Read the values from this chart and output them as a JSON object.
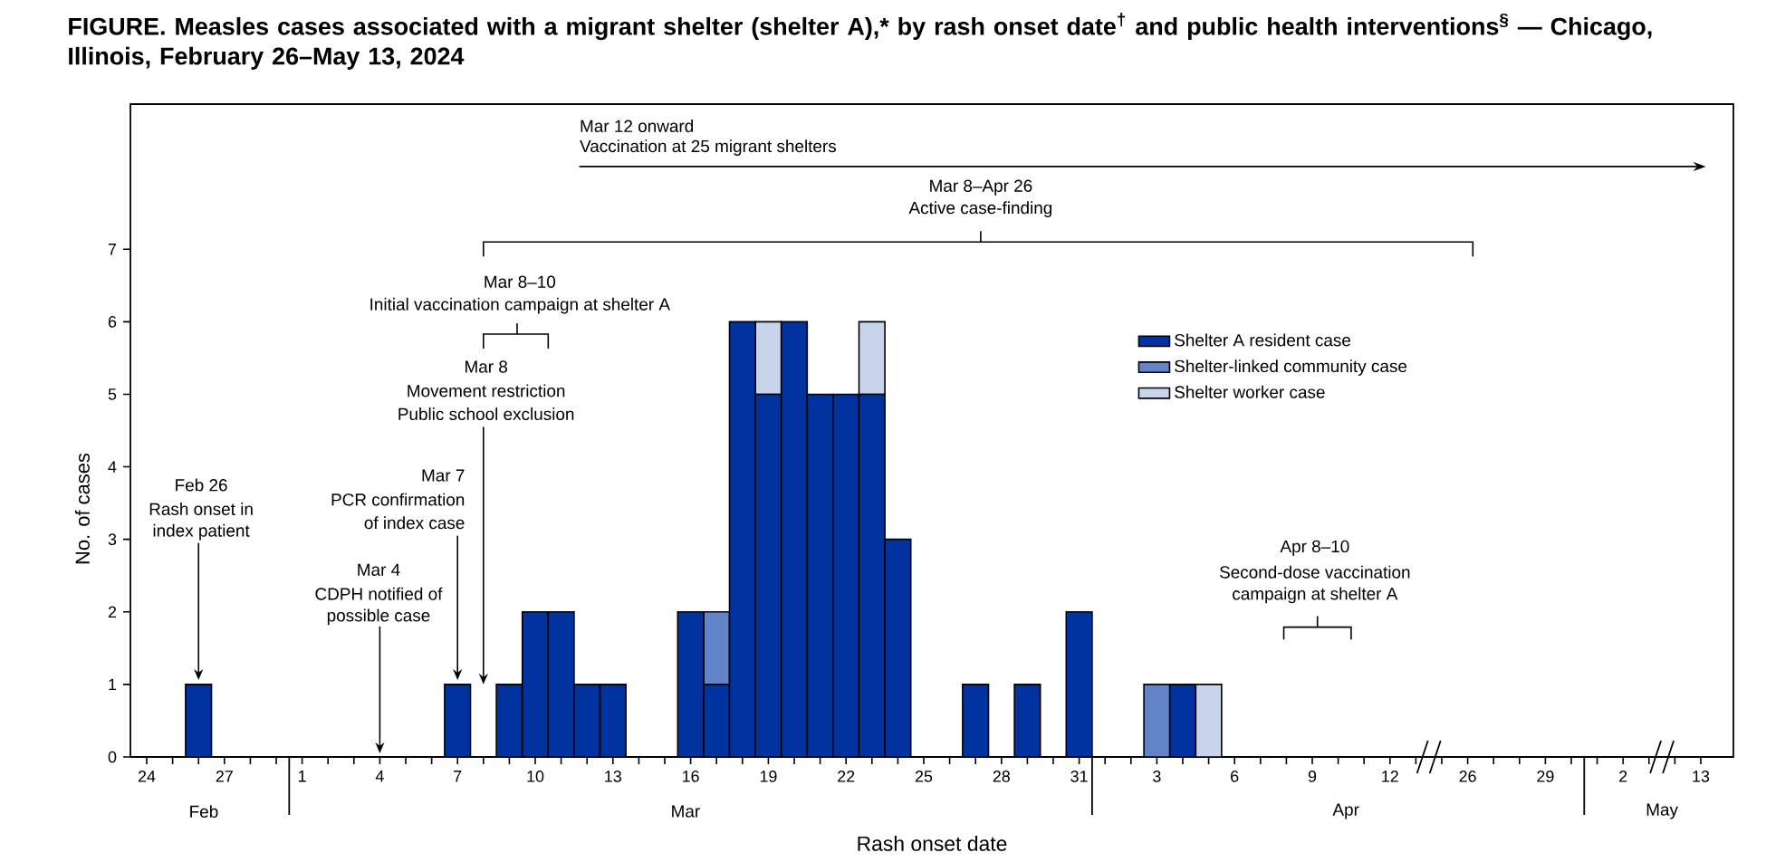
{
  "chart_data": {
    "type": "bar",
    "stacked": true,
    "title": "FIGURE. Measles cases associated with a migrant shelter (shelter A),* by rash onset date$^{†}$ and public health interventions$^{§}$ — Chicago, Illinois, February 26–May 13, 2024",
    "xlabel": "Rash onset date",
    "ylabel": "No. of cases",
    "categories": [
      "24",
      null,
      null,
      "27",
      null,
      null,
      "1",
      null,
      null,
      "4",
      null,
      null,
      "7",
      null,
      null,
      "10",
      null,
      null,
      "13",
      null,
      null,
      "16",
      null,
      null,
      "19",
      null,
      null,
      "22",
      null,
      null,
      "25",
      null,
      null,
      "28",
      null,
      null,
      "31",
      null,
      null,
      "3",
      null,
      null,
      "6",
      null,
      null,
      "9",
      null,
      null,
      "12",
      null,
      null,
      "26",
      null,
      null,
      "29",
      null,
      null,
      "2",
      null,
      null,
      "13"
    ],
    "series": [
      {
        "name": "Shelter A resident case",
        "color": "#0033a0",
        "values": [
          0,
          0,
          1,
          0,
          0,
          0,
          0,
          0,
          0,
          0,
          0,
          0,
          1,
          0,
          1,
          2,
          2,
          1,
          1,
          0,
          0,
          2,
          1,
          6,
          5,
          6,
          5,
          5,
          5,
          3,
          0,
          0,
          1,
          0,
          1,
          0,
          2,
          0,
          0,
          0,
          1,
          0,
          0,
          0,
          0,
          0,
          0,
          0,
          0,
          0,
          0,
          0,
          0,
          0,
          0,
          0,
          0,
          0,
          0,
          0,
          0
        ]
      },
      {
        "name": "Shelter-linked community case",
        "color": "#6384c8",
        "values": [
          0,
          0,
          0,
          0,
          0,
          0,
          0,
          0,
          0,
          0,
          0,
          0,
          0,
          0,
          0,
          0,
          0,
          0,
          0,
          0,
          0,
          0,
          1,
          0,
          0,
          0,
          0,
          0,
          0,
          0,
          0,
          0,
          0,
          0,
          0,
          0,
          0,
          0,
          0,
          1,
          0,
          0,
          0,
          0,
          0,
          0,
          0,
          0,
          0,
          0,
          0,
          0,
          0,
          0,
          0,
          0,
          0,
          0,
          0,
          0,
          0
        ]
      },
      {
        "name": "Shelter worker case",
        "color": "#c8d4ec",
        "values": [
          0,
          0,
          0,
          0,
          0,
          0,
          0,
          0,
          0,
          0,
          0,
          0,
          0,
          0,
          0,
          0,
          0,
          0,
          0,
          0,
          0,
          0,
          0,
          0,
          1,
          0,
          0,
          0,
          1,
          0,
          0,
          0,
          0,
          0,
          0,
          0,
          0,
          0,
          0,
          0,
          0,
          1,
          0,
          0,
          0,
          0,
          0,
          0,
          0,
          0,
          0,
          0,
          0,
          0,
          0,
          0,
          0,
          0,
          0,
          0,
          0
        ]
      }
    ],
    "ylim": [
      0,
      9
    ],
    "yticks": [
      0,
      1,
      2,
      3,
      4,
      5,
      6,
      7
    ],
    "legend": "top right",
    "annotations": [
      "Feb 26",
      "Rash onset in",
      "index patient",
      "Mar 4",
      "CDPH notified of",
      "possible case",
      "Mar 7",
      "PCR confirmation",
      "of index case",
      "Mar 8",
      "Movement restriction",
      "Public school exclusion",
      "Mar 8–10",
      "Initial vaccination campaign at shelter A",
      "Mar 8–Apr 26",
      "Active case-finding",
      "Mar 12 onward",
      "Vaccination at 25 migrant shelters",
      "Apr 8–10",
      "Second-dose vaccination",
      "campaign at shelter A",
      "Feb",
      "Mar",
      "Apr",
      "May"
    ]
  }
}
